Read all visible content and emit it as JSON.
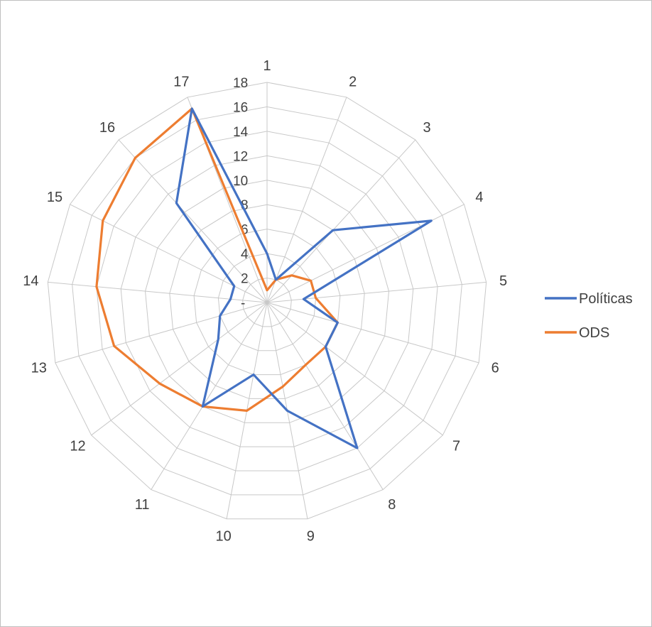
{
  "chart_data": {
    "type": "radar",
    "categories": [
      "1",
      "2",
      "3",
      "4",
      "5",
      "6",
      "7",
      "8",
      "9",
      "10",
      "11",
      "12",
      "13",
      "14",
      "15",
      "16",
      "17"
    ],
    "r_ticks": [
      "-",
      "2",
      "4",
      "6",
      "8",
      "10",
      "12",
      "14",
      "16",
      "18"
    ],
    "rlim": [
      0,
      18
    ],
    "grid": true,
    "legend_position": "right",
    "series": [
      {
        "name": "Políticas",
        "color": "#4472C4",
        "values": [
          4,
          2,
          8,
          15,
          3,
          6,
          6,
          14,
          9,
          6,
          10,
          5,
          4,
          3,
          3,
          11,
          17
        ]
      },
      {
        "name": "ODS",
        "color": "#ED7D31",
        "values": [
          1,
          2,
          3,
          4,
          4,
          6,
          6,
          6,
          7,
          9,
          10,
          11,
          13,
          14,
          15,
          16,
          17
        ]
      }
    ]
  }
}
